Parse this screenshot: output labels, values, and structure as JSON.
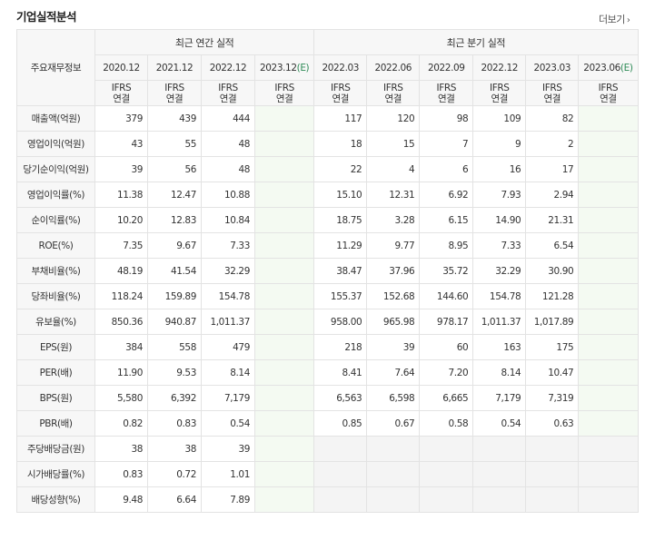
{
  "header": {
    "title": "기업실적분석",
    "more_label": "더보기",
    "more_icon": "chevron-right-icon"
  },
  "table": {
    "corner_label": "주요재무정보",
    "groups": {
      "annual": "최근 연간 실적",
      "quarterly": "최근 분기 실적"
    },
    "annual_periods": [
      "2020.12",
      "2021.12",
      "2022.12",
      "2023.12"
    ],
    "quarter_periods": [
      "2022.03",
      "2022.06",
      "2022.09",
      "2022.12",
      "2023.03",
      "2023.06"
    ],
    "estimate_mark": "(E)",
    "ifrs_line1": "IFRS",
    "ifrs_line2": "연결",
    "rows": [
      {
        "label": "매출액(억원)",
        "annual": [
          "379",
          "439",
          "444",
          ""
        ],
        "quarter": [
          "117",
          "120",
          "98",
          "109",
          "82",
          ""
        ]
      },
      {
        "label": "영업이익(억원)",
        "annual": [
          "43",
          "55",
          "48",
          ""
        ],
        "quarter": [
          "18",
          "15",
          "7",
          "9",
          "2",
          ""
        ]
      },
      {
        "label": "당기순이익(억원)",
        "annual": [
          "39",
          "56",
          "48",
          ""
        ],
        "quarter": [
          "22",
          "4",
          "6",
          "16",
          "17",
          ""
        ]
      },
      {
        "label": "영업이익률(%)",
        "annual": [
          "11.38",
          "12.47",
          "10.88",
          ""
        ],
        "quarter": [
          "15.10",
          "12.31",
          "6.92",
          "7.93",
          "2.94",
          ""
        ]
      },
      {
        "label": "순이익률(%)",
        "annual": [
          "10.20",
          "12.83",
          "10.84",
          ""
        ],
        "quarter": [
          "18.75",
          "3.28",
          "6.15",
          "14.90",
          "21.31",
          ""
        ]
      },
      {
        "label": "ROE(%)",
        "annual": [
          "7.35",
          "9.67",
          "7.33",
          ""
        ],
        "quarter": [
          "11.29",
          "9.77",
          "8.95",
          "7.33",
          "6.54",
          ""
        ]
      },
      {
        "label": "부채비율(%)",
        "annual": [
          "48.19",
          "41.54",
          "32.29",
          ""
        ],
        "quarter": [
          "38.47",
          "37.96",
          "35.72",
          "32.29",
          "30.90",
          ""
        ]
      },
      {
        "label": "당좌비율(%)",
        "annual": [
          "118.24",
          "159.89",
          "154.78",
          ""
        ],
        "quarter": [
          "155.37",
          "152.68",
          "144.60",
          "154.78",
          "121.28",
          ""
        ]
      },
      {
        "label": "유보율(%)",
        "annual": [
          "850.36",
          "940.87",
          "1,011.37",
          ""
        ],
        "quarter": [
          "958.00",
          "965.98",
          "978.17",
          "1,011.37",
          "1,017.89",
          ""
        ]
      },
      {
        "label": "EPS(원)",
        "annual": [
          "384",
          "558",
          "479",
          ""
        ],
        "quarter": [
          "218",
          "39",
          "60",
          "163",
          "175",
          ""
        ]
      },
      {
        "label": "PER(배)",
        "annual": [
          "11.90",
          "9.53",
          "8.14",
          ""
        ],
        "quarter": [
          "8.41",
          "7.64",
          "7.20",
          "8.14",
          "10.47",
          ""
        ]
      },
      {
        "label": "BPS(원)",
        "annual": [
          "5,580",
          "6,392",
          "7,179",
          ""
        ],
        "quarter": [
          "6,563",
          "6,598",
          "6,665",
          "7,179",
          "7,319",
          ""
        ]
      },
      {
        "label": "PBR(배)",
        "annual": [
          "0.82",
          "0.83",
          "0.54",
          ""
        ],
        "quarter": [
          "0.85",
          "0.67",
          "0.58",
          "0.54",
          "0.63",
          ""
        ]
      },
      {
        "label": "주당배당금(원)",
        "annual": [
          "38",
          "38",
          "39",
          ""
        ],
        "quarter": [
          "",
          "",
          "",
          "",
          "",
          ""
        ]
      },
      {
        "label": "시가배당률(%)",
        "annual": [
          "0.83",
          "0.72",
          "1.01",
          ""
        ],
        "quarter": [
          "",
          "",
          "",
          "",
          "",
          ""
        ]
      },
      {
        "label": "배당성향(%)",
        "annual": [
          "9.48",
          "6.64",
          "7.89",
          ""
        ],
        "quarter": [
          "",
          "",
          "",
          "",
          "",
          ""
        ]
      }
    ]
  }
}
